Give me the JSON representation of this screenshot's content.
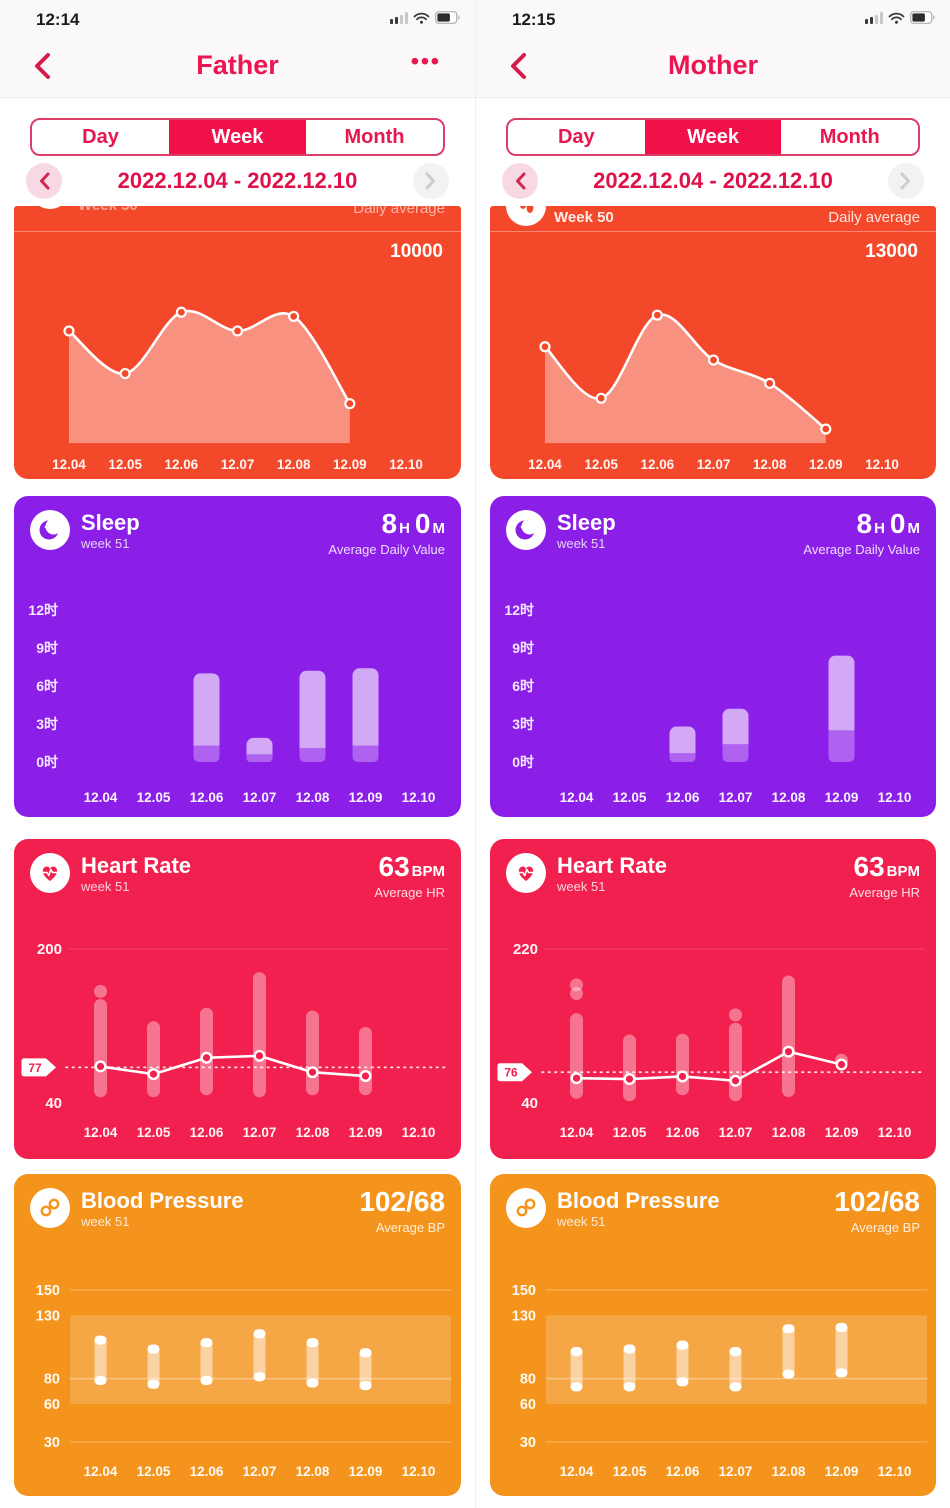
{
  "colors": {
    "accent_pink": "#ed1551",
    "tab_selected_bg": "#f0104a",
    "date_text": "#e0114a",
    "steps_card_bg": "#f4482b",
    "sleep_card_bg": "#8b1fe8",
    "heart_card_bg": "#f2204e",
    "bp_card_bg": "#f5941d"
  },
  "icons": {
    "back": "chevron-left-icon",
    "menu": "ellipsis-icon",
    "status": [
      "cellular-signal-icon",
      "wifi-icon",
      "battery-icon"
    ],
    "prev": "chevron-left-icon",
    "next": "chevron-right-icon",
    "steps": "steps-icon",
    "sleep": "moon-icon",
    "heart_rate": "heart-ecg-icon",
    "blood_pressure": "blood-pressure-icon"
  },
  "panels": [
    {
      "status": {
        "time": "12:14"
      },
      "header": {
        "title": "Father",
        "menu": "•••"
      },
      "tabs": [
        "Day",
        "Week",
        "Month"
      ],
      "selected_tab": "Week",
      "date_range": "2022.12.04 - 2022.12.10",
      "steps": {
        "week_label": "Week 50",
        "average_label": "Daily average",
        "average_value": "10000"
      },
      "sleep": {
        "title": "Sleep",
        "week_label": "week 51",
        "hours": "8",
        "hours_unit": "H",
        "minutes": "0",
        "minutes_unit": "M",
        "average_label": "Average Daily Value"
      },
      "heart_rate": {
        "title": "Heart Rate",
        "week_label": "week 51",
        "value": "63",
        "unit": "BPM",
        "average_label": "Average HR",
        "avg_badge": "77"
      },
      "blood_pressure": {
        "title": "Blood Pressure",
        "week_label": "week 51",
        "value": "102/68",
        "average_label": "Average BP"
      }
    },
    {
      "status": {
        "time": "12:15"
      },
      "header": {
        "title": "Mother",
        "menu": ""
      },
      "tabs": [
        "Day",
        "Week",
        "Month"
      ],
      "selected_tab": "Week",
      "date_range": "2022.12.04 - 2022.12.10",
      "steps": {
        "week_label": "Week 50",
        "average_label": "Daily average",
        "average_value": "13000"
      },
      "sleep": {
        "title": "Sleep",
        "week_label": "week 51",
        "hours": "8",
        "hours_unit": "H",
        "minutes": "0",
        "minutes_unit": "M",
        "average_label": "Average Daily Value"
      },
      "heart_rate": {
        "title": "Heart Rate",
        "week_label": "week 51",
        "value": "63",
        "unit": "BPM",
        "average_label": "Average HR",
        "avg_badge": "76"
      },
      "blood_pressure": {
        "title": "Blood Pressure",
        "week_label": "week 51",
        "value": "102/68",
        "average_label": "Average BP"
      }
    }
  ],
  "chart_data": [
    {
      "id": "father-steps",
      "type": "area",
      "title": "Steps (Father, week)",
      "bg": "#f4482b",
      "x": [
        "12.04",
        "12.05",
        "12.06",
        "12.07",
        "12.08",
        "12.09",
        "12.10"
      ],
      "values": [
        10800,
        6700,
        12600,
        10800,
        12200,
        3800,
        null
      ],
      "ylim": [
        0,
        16000
      ],
      "daily_average": 10000
    },
    {
      "id": "father-sleep",
      "type": "stacked_bar",
      "title": "Sleep hours (Father, week)",
      "bg": "#8b1fe8",
      "x": [
        "12.04",
        "12.05",
        "12.06",
        "12.07",
        "12.08",
        "12.09",
        "12.10"
      ],
      "total_hours": [
        null,
        null,
        7.0,
        1.9,
        7.2,
        7.4,
        null
      ],
      "deep_hours": [
        null,
        null,
        1.3,
        0.6,
        1.1,
        1.3,
        null
      ],
      "yticks": [
        "0时",
        "3时",
        "6时",
        "9时",
        "12时"
      ],
      "ytick_values": [
        0,
        3,
        6,
        9,
        12
      ],
      "ylim": [
        0,
        13.2
      ],
      "weekly_average": "8H 0M"
    },
    {
      "id": "father-hr",
      "type": "range_line",
      "title": "Heart rate (Father, week)",
      "bg": "#f2204e",
      "x": [
        "12.04",
        "12.05",
        "12.06",
        "12.07",
        "12.08",
        "12.09",
        "12.10"
      ],
      "range_low": [
        46,
        46,
        48,
        46,
        48,
        48,
        null
      ],
      "range_high": [
        148,
        125,
        139,
        176,
        136,
        119,
        null
      ],
      "avg_line": [
        78,
        70,
        87,
        89,
        72,
        68,
        null
      ],
      "outlier_dots": [
        [
          0,
          156
        ]
      ],
      "week_average": 77,
      "ymin": 40,
      "ymax": 200,
      "yticks": [
        "200",
        "40"
      ]
    },
    {
      "id": "father-bp",
      "type": "range_bar",
      "title": "Blood pressure (Father, week)",
      "bg": "#f5941d",
      "x": [
        "12.04",
        "12.05",
        "12.06",
        "12.07",
        "12.08",
        "12.09",
        "12.10"
      ],
      "systolic": [
        114,
        107,
        112,
        119,
        112,
        104,
        null
      ],
      "diastolic": [
        75,
        72,
        75,
        78,
        73,
        71,
        null
      ],
      "yticks": [
        150,
        130,
        80,
        60,
        30
      ],
      "normal_band": [
        60,
        130
      ],
      "week_average": "102/68"
    },
    {
      "id": "mother-steps",
      "type": "area",
      "title": "Steps (Mother, week)",
      "bg": "#f4482b",
      "x": [
        "12.04",
        "12.05",
        "12.06",
        "12.07",
        "12.08",
        "12.09",
        "12.10"
      ],
      "values": [
        11600,
        5400,
        15400,
        10000,
        7200,
        1700,
        null
      ],
      "ylim": [
        0,
        20000
      ],
      "daily_average": 13000
    },
    {
      "id": "mother-sleep",
      "type": "stacked_bar",
      "title": "Sleep hours (Mother, week)",
      "bg": "#8b1fe8",
      "x": [
        "12.04",
        "12.05",
        "12.06",
        "12.07",
        "12.08",
        "12.09",
        "12.10"
      ],
      "total_hours": [
        null,
        null,
        2.8,
        4.2,
        null,
        8.4,
        null
      ],
      "deep_hours": [
        null,
        null,
        0.7,
        1.4,
        null,
        2.5,
        null
      ],
      "yticks": [
        "0时",
        "3时",
        "6时",
        "9时",
        "12时"
      ],
      "ytick_values": [
        0,
        3,
        6,
        9,
        12
      ],
      "ylim": [
        0,
        13.2
      ],
      "weekly_average": "8H 0M"
    },
    {
      "id": "mother-hr",
      "type": "range_line",
      "title": "Heart rate (Mother, week)",
      "bg": "#f2204e",
      "x": [
        "12.04",
        "12.05",
        "12.06",
        "12.07",
        "12.08",
        "12.09",
        "12.10"
      ],
      "range_low": [
        45,
        42,
        49,
        42,
        47,
        null,
        null
      ],
      "range_high": [
        145,
        120,
        121,
        134,
        189,
        null,
        null
      ],
      "avg_line": [
        69,
        68,
        71,
        66,
        100,
        85,
        null
      ],
      "outlier_dots": [
        [
          0,
          178
        ],
        [
          0,
          168
        ],
        [
          3,
          143
        ],
        [
          5,
          90
        ]
      ],
      "week_average": 76,
      "ymin": 40,
      "ymax": 220,
      "yticks": [
        "220",
        "40"
      ]
    },
    {
      "id": "mother-bp",
      "type": "range_bar",
      "title": "Blood pressure (Mother, week)",
      "bg": "#f5941d",
      "x": [
        "12.04",
        "12.05",
        "12.06",
        "12.07",
        "12.08",
        "12.09",
        "12.10"
      ],
      "systolic": [
        105,
        107,
        110,
        105,
        123,
        124,
        null
      ],
      "diastolic": [
        70,
        70,
        74,
        70,
        80,
        81,
        null
      ],
      "yticks": [
        150,
        130,
        80,
        60,
        30
      ],
      "normal_band": [
        60,
        130
      ],
      "week_average": "102/68"
    }
  ]
}
